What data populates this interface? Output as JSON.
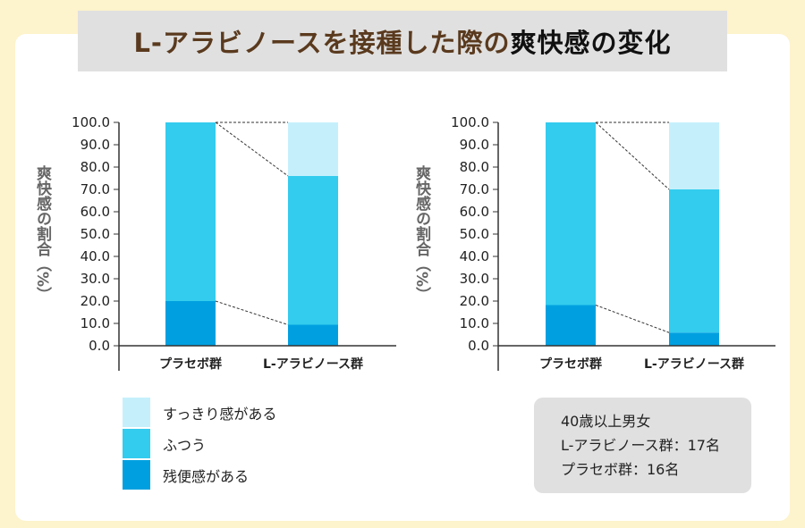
{
  "title_main": "L-アラビノースを接種した際の",
  "title_bold": "爽快感の変化",
  "colors": {
    "refreshed": "#c5f0fb",
    "normal": "#33ccee",
    "residual": "#00a0e0"
  },
  "chart_data": [
    {
      "type": "bar",
      "stacked": true,
      "ylabel": "爽快感の割合（%）",
      "ylim": [
        0,
        100
      ],
      "yticks": [
        "0.0",
        "10.0",
        "20.0",
        "30.0",
        "40.0",
        "50.0",
        "60.0",
        "70.0",
        "80.0",
        "90.0",
        "100.0"
      ],
      "categories": [
        "プラセボ群",
        "L-アラビノース群"
      ],
      "series": [
        {
          "name": "残便感がある",
          "values": [
            20,
            9.4
          ]
        },
        {
          "name": "ふつう",
          "values": [
            80,
            66.6
          ]
        },
        {
          "name": "すっきり感がある",
          "values": [
            0,
            24
          ]
        }
      ]
    },
    {
      "type": "bar",
      "stacked": true,
      "ylabel": "爽快感の割合（%）",
      "ylim": [
        0,
        100
      ],
      "yticks": [
        "0.0",
        "10.0",
        "20.0",
        "30.0",
        "40.0",
        "50.0",
        "60.0",
        "70.0",
        "80.0",
        "90.0",
        "100.0"
      ],
      "categories": [
        "プラセボ群",
        "L-アラビノース群"
      ],
      "series": [
        {
          "name": "残便感がある",
          "values": [
            18.2,
            5.9
          ]
        },
        {
          "name": "ふつう",
          "values": [
            81.8,
            64.1
          ]
        },
        {
          "name": "すっきり感がある",
          "values": [
            0,
            30
          ]
        }
      ]
    }
  ],
  "legend": [
    "すっきり感がある",
    "ふつう",
    "残便感がある"
  ],
  "info": [
    "40歳以上男女",
    "L-アラビノース群：17名",
    "プラセボ群：16名"
  ]
}
